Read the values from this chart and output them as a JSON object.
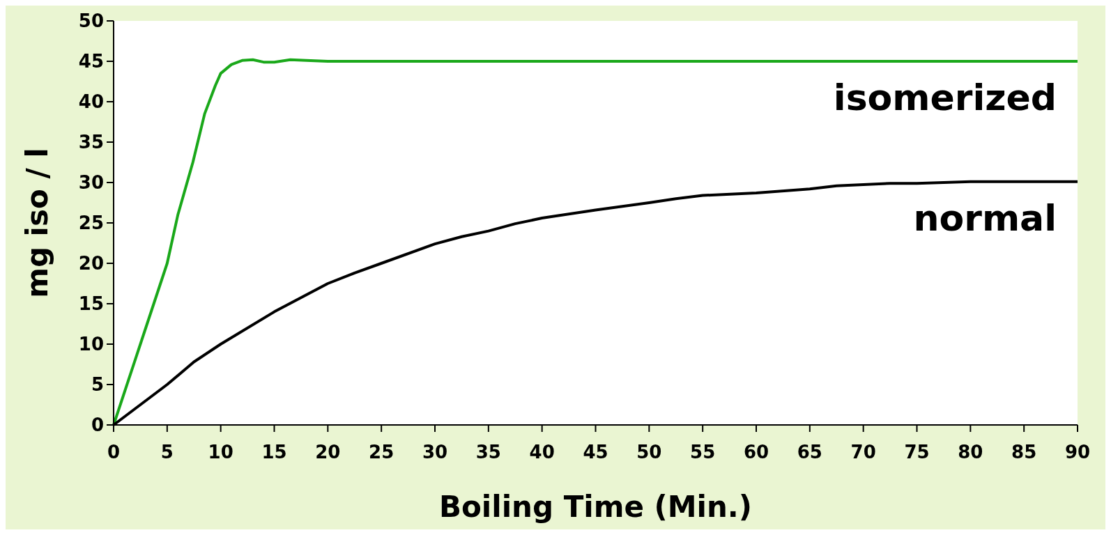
{
  "chart_data": {
    "type": "line",
    "xlabel": "Boiling Time (Min.)",
    "ylabel": "mg iso / l",
    "xlim": [
      0,
      90
    ],
    "xticks": [
      0,
      5,
      10,
      15,
      20,
      25,
      30,
      35,
      40,
      45,
      50,
      55,
      60,
      65,
      70,
      75,
      80,
      85,
      90
    ],
    "ylim": [
      0,
      50
    ],
    "yticks": [
      0,
      5,
      10,
      15,
      20,
      25,
      30,
      35,
      40,
      45,
      50
    ],
    "grid": false,
    "marker": "none",
    "line_style": "solid",
    "series": [
      {
        "name": "isomerized",
        "color": "#1aa81a",
        "x": [
          0,
          2.5,
          5,
          6,
          7.4,
          8.5,
          9.5,
          10,
          11,
          12,
          13,
          14,
          15,
          16.5,
          18,
          20,
          90
        ],
        "values": [
          0,
          10,
          20,
          26,
          32.5,
          38.5,
          42,
          43.5,
          44.6,
          45.1,
          45.2,
          44.9,
          44.9,
          45.2,
          45.1,
          45,
          45
        ]
      },
      {
        "name": "normal",
        "color": "#000000",
        "x": [
          0,
          5,
          7.5,
          10,
          15,
          20,
          22.5,
          25,
          30,
          32.5,
          35,
          37.5,
          40,
          45,
          50,
          52.5,
          55,
          60,
          65,
          67.5,
          72.5,
          75,
          80,
          90
        ],
        "values": [
          0,
          5,
          7.8,
          10,
          14,
          17.5,
          18.8,
          20,
          22.4,
          23.3,
          24,
          24.9,
          25.6,
          26.6,
          27.5,
          28,
          28.4,
          28.7,
          29.2,
          29.6,
          29.9,
          29.9,
          30.1,
          30.1
        ]
      }
    ]
  }
}
